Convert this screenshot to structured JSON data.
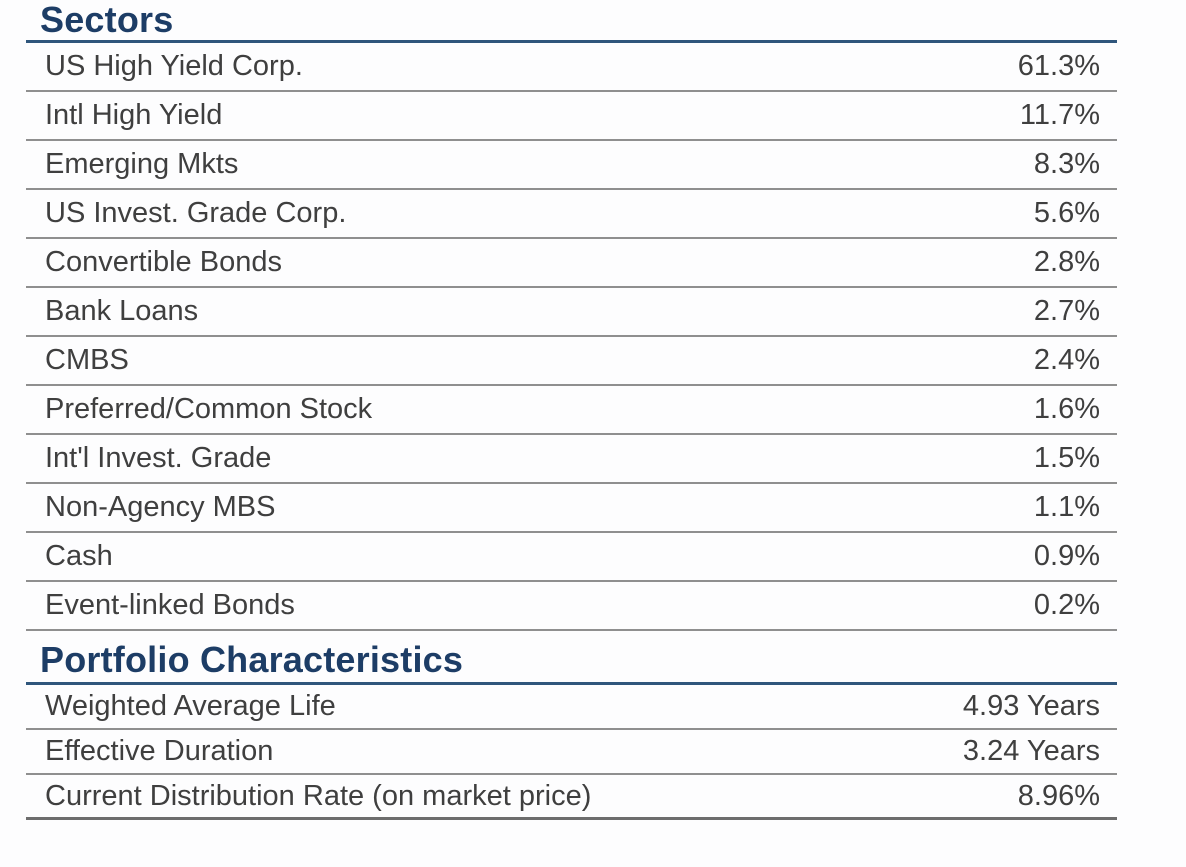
{
  "colors": {
    "heading_navy": "#1d3d66",
    "rule_navy": "#2f567c",
    "row_text_gray": "#3f3f3f",
    "divider_gray": "#8f8f8f"
  },
  "sections": [
    {
      "id": "sectors",
      "title": "Sectors",
      "rows": [
        {
          "label": "US High Yield Corp.",
          "value": "61.3%"
        },
        {
          "label": "Intl High Yield",
          "value": "11.7%"
        },
        {
          "label": "Emerging Mkts",
          "value": "8.3%"
        },
        {
          "label": "US Invest. Grade Corp.",
          "value": "5.6%"
        },
        {
          "label": "Convertible Bonds",
          "value": "2.8%"
        },
        {
          "label": "Bank Loans",
          "value": "2.7%"
        },
        {
          "label": "CMBS",
          "value": "2.4%"
        },
        {
          "label": "Preferred/Common Stock",
          "value": "1.6%"
        },
        {
          "label": "Int'l Invest. Grade",
          "value": "1.5%"
        },
        {
          "label": "Non-Agency MBS",
          "value": "1.1%"
        },
        {
          "label": "Cash",
          "value": "0.9%"
        },
        {
          "label": "Event-linked Bonds",
          "value": "0.2%"
        }
      ]
    },
    {
      "id": "portfolio_characteristics",
      "title": "Portfolio Characteristics",
      "rows": [
        {
          "label": "Weighted Average Life",
          "value": "4.93 Years"
        },
        {
          "label": "Effective Duration",
          "value": "3.24 Years"
        },
        {
          "label": "Current Distribution Rate (on market price)",
          "value": "8.96%"
        }
      ]
    }
  ]
}
